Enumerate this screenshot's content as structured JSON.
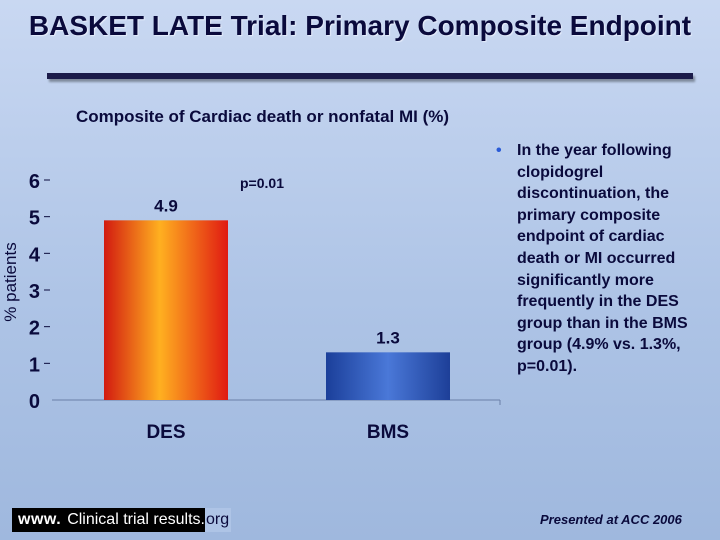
{
  "title": "BASKET LATE Trial: Primary Composite Endpoint",
  "bullet": "In the year following clopidogrel discontinuation, the primary composite endpoint of cardiac death or MI occurred significantly more frequently in the DES group than in the BMS group (4.9% vs. 1.3%, p=0.01).",
  "footer": {
    "www": "www.",
    "middle": "Clinical trial results.",
    "tail": "org",
    "presented": "Presented at ACC 2006"
  },
  "colors": {
    "des": "#e23b1c",
    "bms": "#2e56b4",
    "text": "#0a0a3c",
    "accent_bullet": "#2a5bd7"
  },
  "chart_data": {
    "type": "bar",
    "title": "Composite of Cardiac death or nonfatal MI (%)",
    "ylabel": "% patients",
    "categories": [
      "DES",
      "BMS"
    ],
    "values": [
      4.9,
      1.3
    ],
    "value_labels": [
      "4.9",
      "1.3"
    ],
    "ylim": [
      0,
      6
    ],
    "yticks": [
      0,
      1,
      2,
      3,
      4,
      5,
      6
    ],
    "annotations": [
      "p=0.01"
    ],
    "grid": false,
    "legend": "none"
  }
}
